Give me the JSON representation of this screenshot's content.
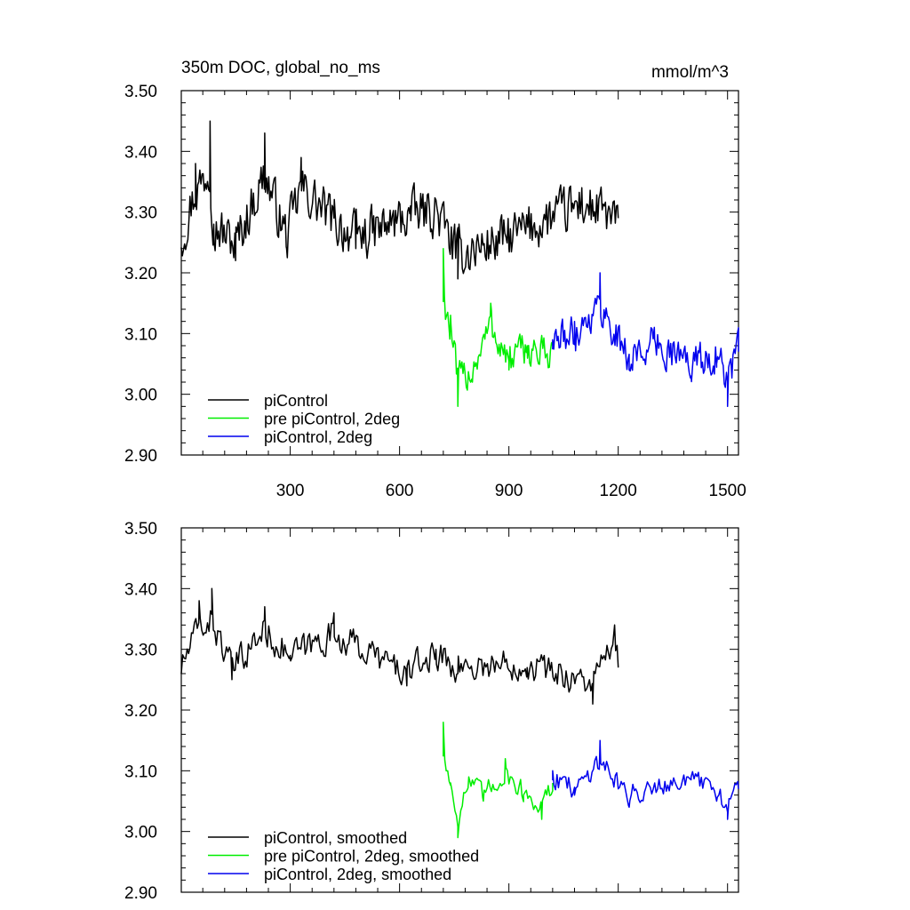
{
  "header": {
    "title": "350m DOC, global_no_ms",
    "units": "mmol/m^3"
  },
  "colors": {
    "piControl": "#000000",
    "pre_piControl_2deg": "#00ee00",
    "piControl_2deg": "#0000ee"
  },
  "chart_data": [
    {
      "type": "line",
      "title": "350m DOC, global_no_ms",
      "units": "mmol/m^3",
      "xlim": [
        1,
        1530
      ],
      "ylim": [
        2.9,
        3.5
      ],
      "x_ticks": [
        300,
        600,
        900,
        1200,
        1500
      ],
      "x_tick_labels": [
        "300",
        "600",
        "900",
        "1200",
        "1500"
      ],
      "y_ticks": [
        2.9,
        3.0,
        3.1,
        3.2,
        3.3,
        3.4,
        3.5
      ],
      "y_tick_labels": [
        "2.90",
        "3.00",
        "3.10",
        "3.20",
        "3.30",
        "3.40",
        "3.50"
      ],
      "legend_position": "bottom-left",
      "grid": false,
      "series": [
        {
          "name": "piControl",
          "color": "#000000",
          "x_range": [
            1,
            1200
          ],
          "mean": 3.28,
          "amplitude": 0.055,
          "x": [
            1,
            40,
            80,
            90,
            150,
            230,
            290,
            330,
            420,
            480,
            560,
            630,
            700,
            760,
            900,
            1100,
            1200
          ],
          "values": [
            3.24,
            3.38,
            3.45,
            3.28,
            3.22,
            3.43,
            3.24,
            3.39,
            3.29,
            3.24,
            3.27,
            3.31,
            3.32,
            3.19,
            3.24,
            3.34,
            3.29
          ]
        },
        {
          "name": "pre piControl, 2deg",
          "color": "#00ee00",
          "x_range": [
            720,
            1020
          ],
          "mean": 3.07,
          "amplitude": 0.04,
          "x": [
            720,
            740,
            760,
            800,
            850,
            900,
            950,
            1000,
            1020
          ],
          "values": [
            3.24,
            3.13,
            2.98,
            3.02,
            3.15,
            3.04,
            3.08,
            3.06,
            3.08
          ]
        },
        {
          "name": "piControl, 2deg",
          "color": "#0000ee",
          "x_range": [
            1020,
            1530
          ],
          "mean": 3.08,
          "amplitude": 0.04,
          "x": [
            1020,
            1080,
            1150,
            1230,
            1300,
            1400,
            1470,
            1500,
            1530
          ],
          "values": [
            3.09,
            3.12,
            3.2,
            3.04,
            3.09,
            3.03,
            3.05,
            2.98,
            3.07
          ]
        }
      ]
    },
    {
      "type": "line",
      "xlim": [
        1,
        1530
      ],
      "ylim": [
        2.9,
        3.5
      ],
      "x_ticks": [
        300,
        600,
        900,
        1200,
        1500
      ],
      "y_ticks": [
        2.9,
        3.0,
        3.1,
        3.2,
        3.3,
        3.4,
        3.5
      ],
      "y_tick_labels": [
        "2.90",
        "3.00",
        "3.10",
        "3.20",
        "3.30",
        "3.40",
        "3.50"
      ],
      "legend_position": "bottom-left",
      "grid": false,
      "series": [
        {
          "name": "piControl, smoothed",
          "color": "#000000",
          "x_range": [
            1,
            1200
          ],
          "mean": 3.285,
          "amplitude": 0.035,
          "x": [
            1,
            50,
            85,
            140,
            230,
            300,
            420,
            620,
            700,
            760,
            950,
            1130,
            1190,
            1200
          ],
          "values": [
            3.26,
            3.38,
            3.4,
            3.25,
            3.37,
            3.29,
            3.36,
            3.24,
            3.3,
            3.26,
            3.27,
            3.21,
            3.34,
            3.27
          ]
        },
        {
          "name": "pre piControl, 2deg, smoothed",
          "color": "#00ee00",
          "x_range": [
            720,
            1020
          ],
          "mean": 3.07,
          "amplitude": 0.025,
          "x": [
            720,
            740,
            760,
            790,
            830,
            890,
            940,
            990,
            1020
          ],
          "values": [
            3.18,
            3.08,
            2.99,
            3.09,
            3.05,
            3.12,
            3.06,
            3.02,
            3.08
          ]
        },
        {
          "name": "piControl, 2deg, smoothed",
          "color": "#0000ee",
          "x_range": [
            1020,
            1530
          ],
          "mean": 3.08,
          "amplitude": 0.025,
          "x": [
            1020,
            1080,
            1150,
            1230,
            1300,
            1400,
            1470,
            1500,
            1530
          ],
          "values": [
            3.1,
            3.06,
            3.15,
            3.04,
            3.08,
            3.09,
            3.05,
            3.02,
            3.07
          ]
        }
      ]
    }
  ]
}
